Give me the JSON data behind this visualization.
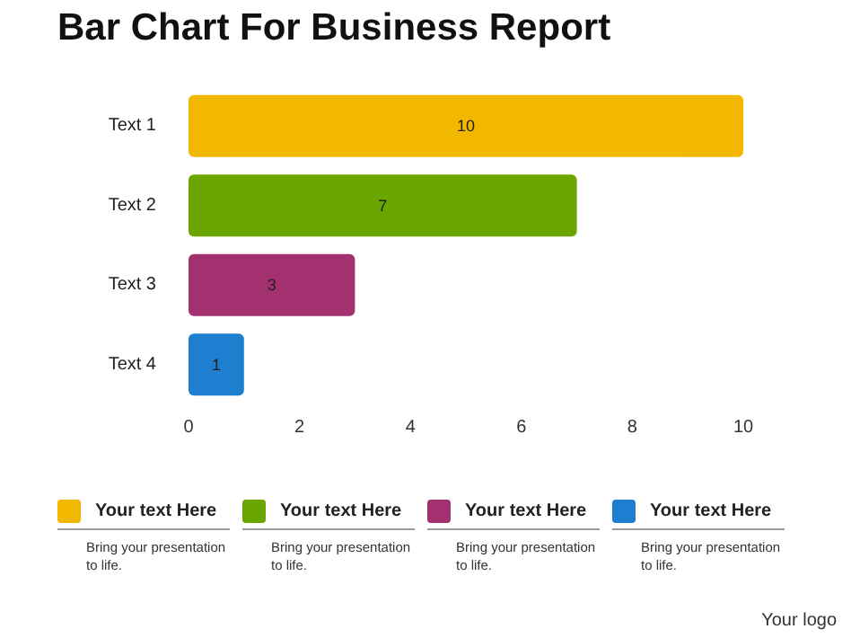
{
  "chart_data": {
    "type": "bar",
    "orientation": "horizontal",
    "title": "Bar Chart For Business Report",
    "categories": [
      "Text 1",
      "Text 2",
      "Text 3",
      "Text 4"
    ],
    "series": [
      {
        "name": "Your text Here",
        "color": "#f2b800",
        "values": [
          10,
          null,
          null,
          null
        ]
      },
      {
        "name": "Your text Here",
        "color": "#6aa500",
        "values": [
          null,
          7,
          null,
          null
        ]
      },
      {
        "name": "Your text Here",
        "color": "#a3306f",
        "values": [
          null,
          null,
          3,
          null
        ]
      },
      {
        "name": "Your text Here",
        "color": "#1e7fd0",
        "values": [
          null,
          null,
          null,
          1
        ]
      }
    ],
    "xlim": [
      0,
      10
    ],
    "xticks": [
      0,
      2,
      4,
      6,
      8,
      10
    ],
    "grid": false,
    "data_labels": true,
    "legend": "bottom",
    "annotations": [
      "Bring your presentation to life.",
      "Bring your presentation to life.",
      "Bring your presentation to life.",
      "Bring your presentation to life.",
      "Your logo"
    ]
  }
}
